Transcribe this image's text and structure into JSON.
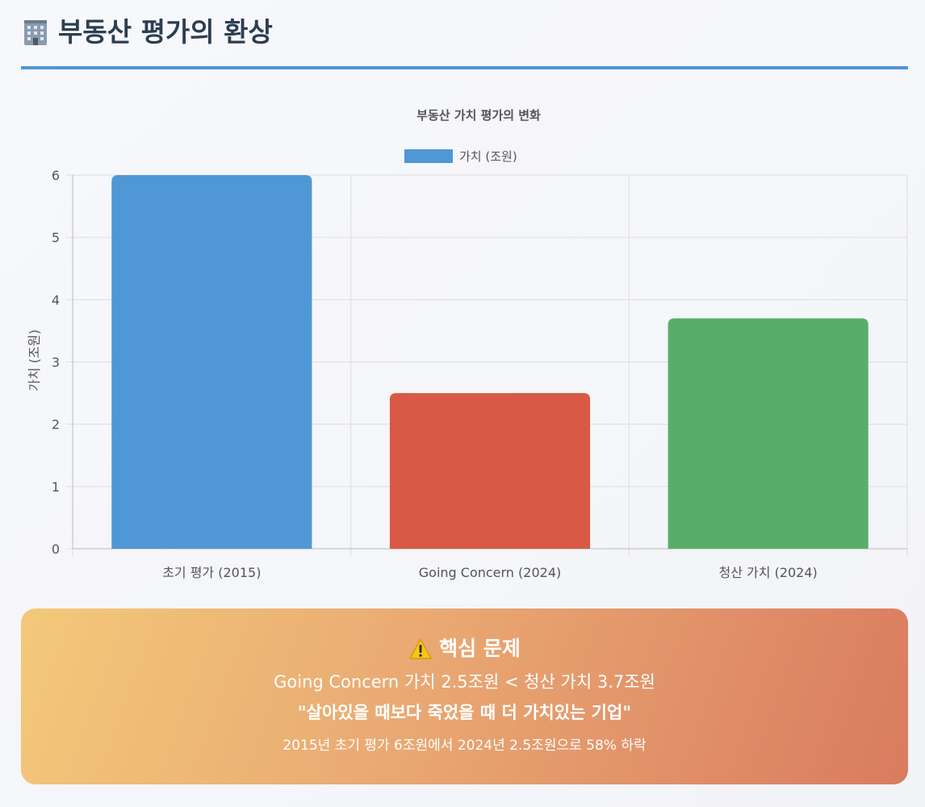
{
  "header": {
    "title": "부동산 평가의 환상",
    "icon": "office-building-icon"
  },
  "chart_data": {
    "type": "bar",
    "title": "부동산 가치 평가의 변화",
    "categories": [
      "초기 평가 (2015)",
      "Going Concern (2024)",
      "청산 가치 (2024)"
    ],
    "series": [
      {
        "name": "가치 (조원)",
        "values": [
          6,
          2.5,
          3.7
        ]
      }
    ],
    "bar_colors": [
      "#4f97d5",
      "#d85a45",
      "#58ae69"
    ],
    "legend_color": "#4f97d5",
    "xlabel": "",
    "ylabel": "가치 (조원)",
    "ylim": [
      0,
      6
    ],
    "yticks": [
      0,
      1,
      2,
      3,
      4,
      5,
      6
    ],
    "grid": true,
    "legend_position": "top"
  },
  "alert": {
    "icon": "warning-icon",
    "title": "핵심 문제",
    "comparison": "Going Concern 가치 2.5조원 < 청산 가치 3.7조원",
    "quote": "\"살아있을 때보다 죽었을 때 더 가치있는 기업\"",
    "note": "2015년 초기 평가 6조원에서 2024년 2.5조원으로 58% 하락"
  }
}
